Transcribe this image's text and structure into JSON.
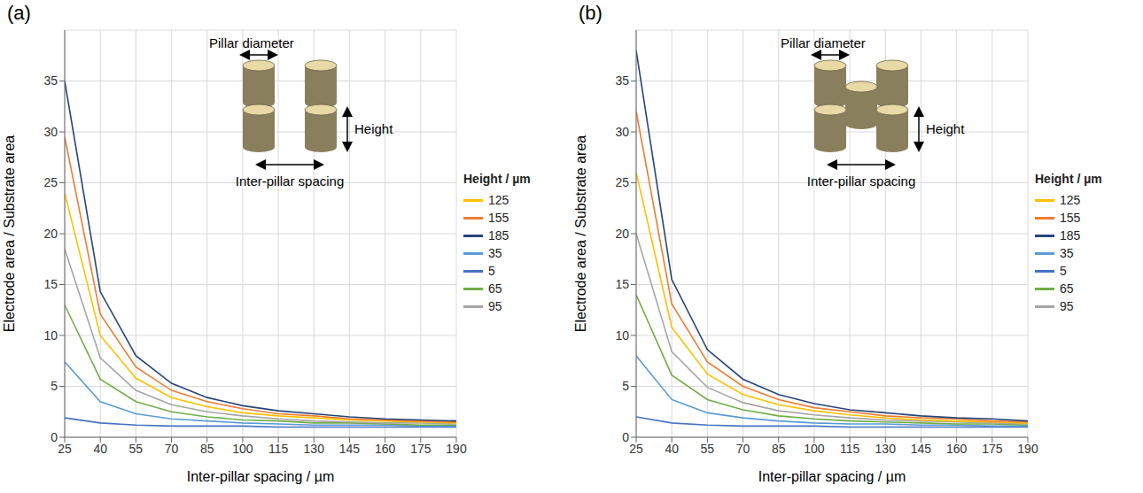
{
  "chart_data": [
    {
      "type": "line",
      "title": "(a)",
      "x_label": "Inter-pillar spacing / µm",
      "y_label": "Electrode area / Substrate area",
      "legend_title": "Height / µm",
      "annotations": [
        "Pillar diameter",
        "Height",
        "Inter-pillar spacing"
      ],
      "x": [
        25,
        40,
        55,
        70,
        85,
        100,
        115,
        130,
        145,
        160,
        175,
        190
      ],
      "xlim": [
        25,
        190
      ],
      "xticks": [
        25,
        40,
        55,
        70,
        85,
        100,
        115,
        130,
        145,
        160,
        175,
        190
      ],
      "ylim": [
        0,
        40
      ],
      "yticks": [
        0,
        5,
        10,
        15,
        20,
        25,
        30,
        35
      ],
      "grid": true,
      "legend": "right",
      "series": [
        {
          "name": "5",
          "color": "#4472c4",
          "values": [
            1.9,
            1.4,
            1.2,
            1.1,
            1.1,
            1.1,
            1.0,
            1.0,
            1.0,
            1.0,
            1.0,
            1.0
          ]
        },
        {
          "name": "35",
          "color": "#5b9bd5",
          "values": [
            7.4,
            3.5,
            2.3,
            1.8,
            1.6,
            1.4,
            1.3,
            1.2,
            1.2,
            1.2,
            1.1,
            1.1
          ]
        },
        {
          "name": "65",
          "color": "#70ad47",
          "values": [
            13.0,
            5.7,
            3.5,
            2.5,
            2.0,
            1.7,
            1.6,
            1.4,
            1.4,
            1.3,
            1.2,
            1.2
          ]
        },
        {
          "name": "95",
          "color": "#a5a5a5",
          "values": [
            18.5,
            7.8,
            4.6,
            3.2,
            2.5,
            2.1,
            1.8,
            1.6,
            1.5,
            1.4,
            1.4,
            1.3
          ]
        },
        {
          "name": "125",
          "color": "#ffc000",
          "values": [
            24.0,
            10.0,
            5.8,
            3.9,
            3.0,
            2.4,
            2.1,
            1.9,
            1.7,
            1.6,
            1.5,
            1.4
          ]
        },
        {
          "name": "155",
          "color": "#ed7d31",
          "values": [
            29.5,
            12.1,
            6.9,
            4.6,
            3.5,
            2.8,
            2.3,
            2.1,
            1.8,
            1.7,
            1.6,
            1.5
          ]
        },
        {
          "name": "185",
          "color": "#264478",
          "values": [
            35.0,
            14.3,
            8.0,
            5.3,
            3.9,
            3.1,
            2.6,
            2.3,
            2.0,
            1.8,
            1.7,
            1.6
          ]
        }
      ]
    },
    {
      "type": "line",
      "title": "(b)",
      "x_label": "Inter-pillar spacing / µm",
      "y_label": "Electrode area / Substrate area",
      "legend_title": "Height / µm",
      "annotations": [
        "Pillar diameter",
        "Height",
        "Inter-pillar spacing"
      ],
      "x": [
        25,
        40,
        55,
        70,
        85,
        100,
        115,
        130,
        145,
        160,
        175,
        190
      ],
      "xlim": [
        25,
        190
      ],
      "xticks": [
        25,
        40,
        55,
        70,
        85,
        100,
        115,
        130,
        145,
        160,
        175,
        190
      ],
      "ylim": [
        0,
        40
      ],
      "yticks": [
        0,
        5,
        10,
        15,
        20,
        25,
        30,
        35
      ],
      "grid": true,
      "legend": "right",
      "series": [
        {
          "name": "5",
          "color": "#4472c4",
          "values": [
            2.0,
            1.4,
            1.2,
            1.1,
            1.1,
            1.1,
            1.0,
            1.0,
            1.0,
            1.0,
            1.0,
            1.0
          ]
        },
        {
          "name": "35",
          "color": "#5b9bd5",
          "values": [
            8.0,
            3.7,
            2.4,
            1.9,
            1.6,
            1.4,
            1.3,
            1.3,
            1.2,
            1.2,
            1.1,
            1.1
          ]
        },
        {
          "name": "65",
          "color": "#70ad47",
          "values": [
            14.0,
            6.1,
            3.7,
            2.7,
            2.1,
            1.8,
            1.6,
            1.5,
            1.4,
            1.3,
            1.3,
            1.2
          ]
        },
        {
          "name": "95",
          "color": "#a5a5a5",
          "values": [
            20.0,
            8.4,
            4.9,
            3.4,
            2.6,
            2.2,
            1.9,
            1.7,
            1.6,
            1.5,
            1.4,
            1.3
          ]
        },
        {
          "name": "125",
          "color": "#ffc000",
          "values": [
            26.0,
            10.8,
            6.2,
            4.2,
            3.2,
            2.6,
            2.2,
            1.9,
            1.7,
            1.6,
            1.5,
            1.4
          ]
        },
        {
          "name": "155",
          "color": "#ed7d31",
          "values": [
            32.0,
            13.1,
            7.4,
            5.0,
            3.7,
            2.9,
            2.5,
            2.1,
            1.9,
            1.8,
            1.6,
            1.5
          ]
        },
        {
          "name": "185",
          "color": "#264478",
          "values": [
            38.0,
            15.5,
            8.6,
            5.7,
            4.2,
            3.3,
            2.7,
            2.4,
            2.1,
            1.9,
            1.8,
            1.6
          ]
        }
      ]
    }
  ]
}
